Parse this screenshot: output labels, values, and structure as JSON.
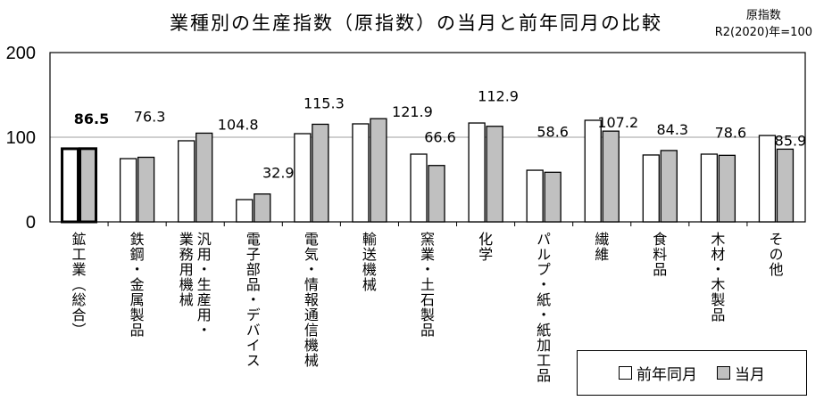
{
  "title": "業種別の生産指数（原指数）の当月と前年同月の比較",
  "unit_line1": "原指数",
  "unit_line2": "R2(2020)年=100",
  "legend": {
    "prev": "前年同月",
    "cur": "当月"
  },
  "colors": {
    "prev": "#ffffff",
    "cur": "#c0c0c0",
    "grid": "#bfbfbf"
  },
  "chart_data": {
    "type": "bar",
    "title": "業種別の生産指数（原指数）の当月と前年同月の比較",
    "ylim": [
      0,
      200
    ],
    "yticks": [
      "0",
      "100",
      "200"
    ],
    "grid": true,
    "legend_position": "bottom-right",
    "categories": [
      [
        "鉱工業（総合）"
      ],
      [
        "鉄鋼・金属製品"
      ],
      [
        "汎用・生産用・",
        "業務用機械"
      ],
      [
        "電子部品・デバイス"
      ],
      [
        "電気・情報通信機械"
      ],
      [
        "輸送機械"
      ],
      [
        "窯業・土石製品"
      ],
      [
        "化学"
      ],
      [
        "パルプ・紙・紙加工品"
      ],
      [
        "繊維"
      ],
      [
        "食料品"
      ],
      [
        "木材・木製品"
      ],
      [
        "その他"
      ]
    ],
    "series": [
      {
        "name": "前年同月",
        "values": [
          86.4,
          74.7,
          95.8,
          26.3,
          104.2,
          115.8,
          80.0,
          116.8,
          61.0,
          120.0,
          79.0,
          80.0,
          102.0
        ]
      },
      {
        "name": "当月",
        "values": [
          86.5,
          76.3,
          104.8,
          32.9,
          115.3,
          121.9,
          66.6,
          112.9,
          58.6,
          107.2,
          84.3,
          78.6,
          85.9
        ]
      }
    ],
    "data_labels": [
      "86.5",
      "76.3",
      "104.8",
      "32.9",
      "115.3",
      "121.9",
      "66.6",
      "112.9",
      "58.6",
      "107.2",
      "84.3",
      "78.6",
      "85.9"
    ]
  }
}
